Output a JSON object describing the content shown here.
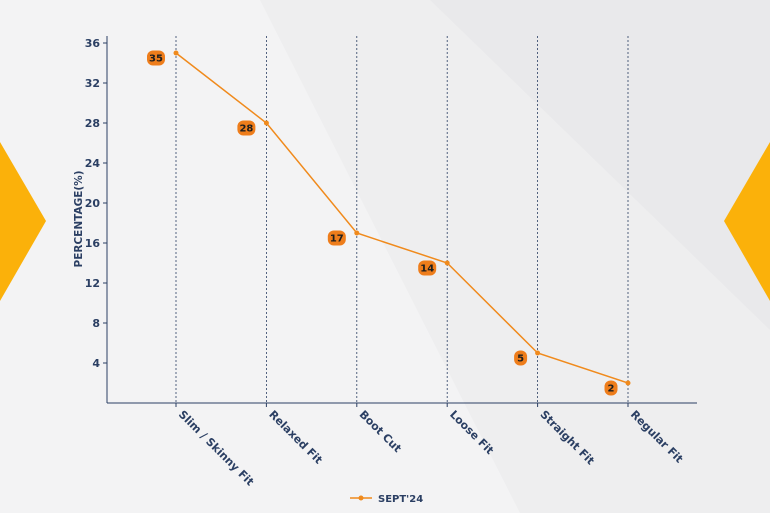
{
  "colors": {
    "line": "#f08a1c",
    "badge": "#ee7d1b",
    "axis": "#2b3f63",
    "accent": "#fbb10a"
  },
  "chart_data": {
    "type": "line",
    "categories": [
      "Slim / Skinny Fit",
      "Relaxed Fit",
      "Boot Cut",
      "Loose Fit",
      "Straight Fit",
      "Regular Fit"
    ],
    "series": [
      {
        "name": "SEPT'24",
        "values": [
          35,
          28,
          17,
          14,
          5,
          2
        ]
      }
    ],
    "data_labels": [
      "35",
      "28",
      "17",
      "14",
      "5",
      "2"
    ],
    "ylabel": "PERCENTAGE(%)",
    "xlabel": "",
    "ylim": [
      0,
      36
    ],
    "yticks": [
      4,
      8,
      12,
      16,
      20,
      24,
      28,
      32,
      36
    ],
    "vertical_gridlines": true,
    "legend_position": "bottom-center"
  }
}
